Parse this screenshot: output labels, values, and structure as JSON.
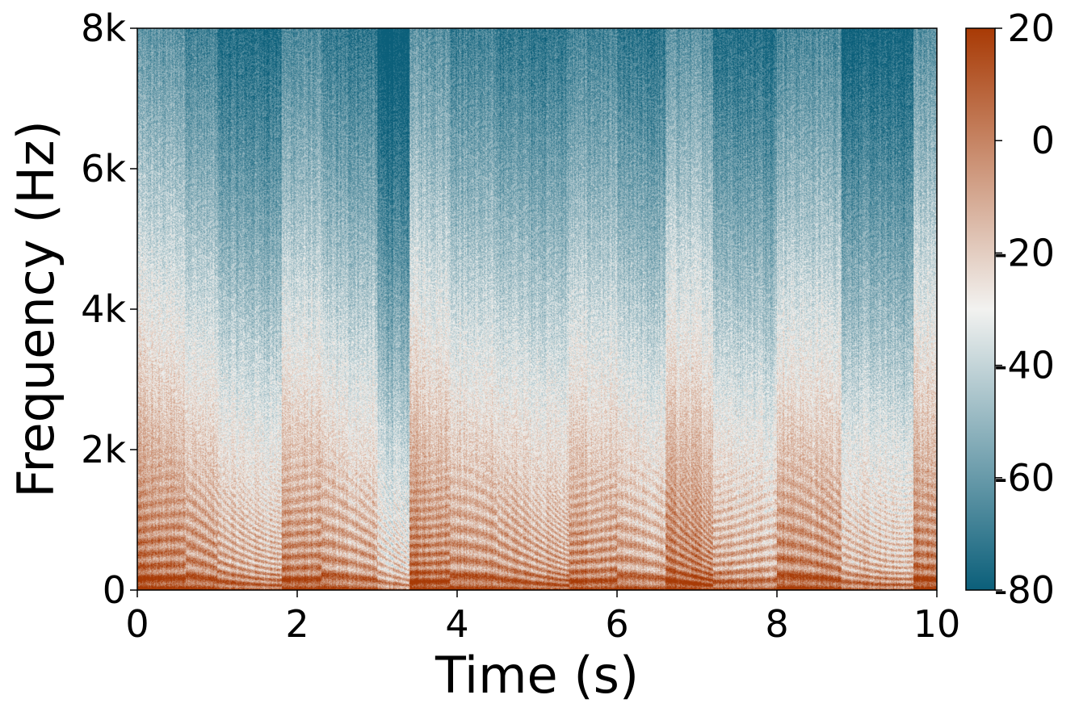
{
  "chart_data": {
    "type": "heatmap",
    "subtype": "spectrogram",
    "title": "",
    "xlabel": "Time (s)",
    "ylabel": "Frequency (Hz)",
    "xlim": [
      0,
      10
    ],
    "ylim": [
      0,
      8000
    ],
    "x_ticks": [
      0,
      2,
      4,
      6,
      8,
      10
    ],
    "x_tick_labels": [
      "0",
      "2",
      "4",
      "6",
      "8",
      "10"
    ],
    "y_ticks": [
      0,
      2000,
      4000,
      6000,
      8000
    ],
    "y_tick_labels": [
      "0",
      "2k",
      "4k",
      "6k",
      "8k"
    ],
    "grid": false,
    "colorbar": {
      "placement": "right",
      "range": [
        -80,
        20
      ],
      "ticks": [
        -80,
        -60,
        -40,
        -20,
        0,
        20
      ],
      "tick_labels": [
        "-80",
        "-60",
        "-40",
        "-20",
        "0",
        "20"
      ],
      "colors": [
        "#0b5f7a",
        "#f2f2f0",
        "#a83a05"
      ]
    },
    "segments": [
      {
        "start": 0.0,
        "end": 0.6,
        "level": 10
      },
      {
        "start": 0.6,
        "end": 1.0,
        "level": 4
      },
      {
        "start": 1.0,
        "end": 1.8,
        "level": -4
      },
      {
        "start": 1.8,
        "end": 2.3,
        "level": 6
      },
      {
        "start": 2.3,
        "end": 3.0,
        "level": 0
      },
      {
        "start": 3.0,
        "end": 3.4,
        "level": -15
      },
      {
        "start": 3.4,
        "end": 3.9,
        "level": 10
      },
      {
        "start": 3.9,
        "end": 4.5,
        "level": 3
      },
      {
        "start": 4.5,
        "end": 5.4,
        "level": 0
      },
      {
        "start": 5.4,
        "end": 6.0,
        "level": 4
      },
      {
        "start": 6.0,
        "end": 6.6,
        "level": -2
      },
      {
        "start": 6.6,
        "end": 7.2,
        "level": 9
      },
      {
        "start": 7.2,
        "end": 8.0,
        "level": -3
      },
      {
        "start": 8.0,
        "end": 8.8,
        "level": 6
      },
      {
        "start": 8.8,
        "end": 9.7,
        "level": -8
      },
      {
        "start": 9.7,
        "end": 10.0,
        "level": 9
      }
    ]
  }
}
